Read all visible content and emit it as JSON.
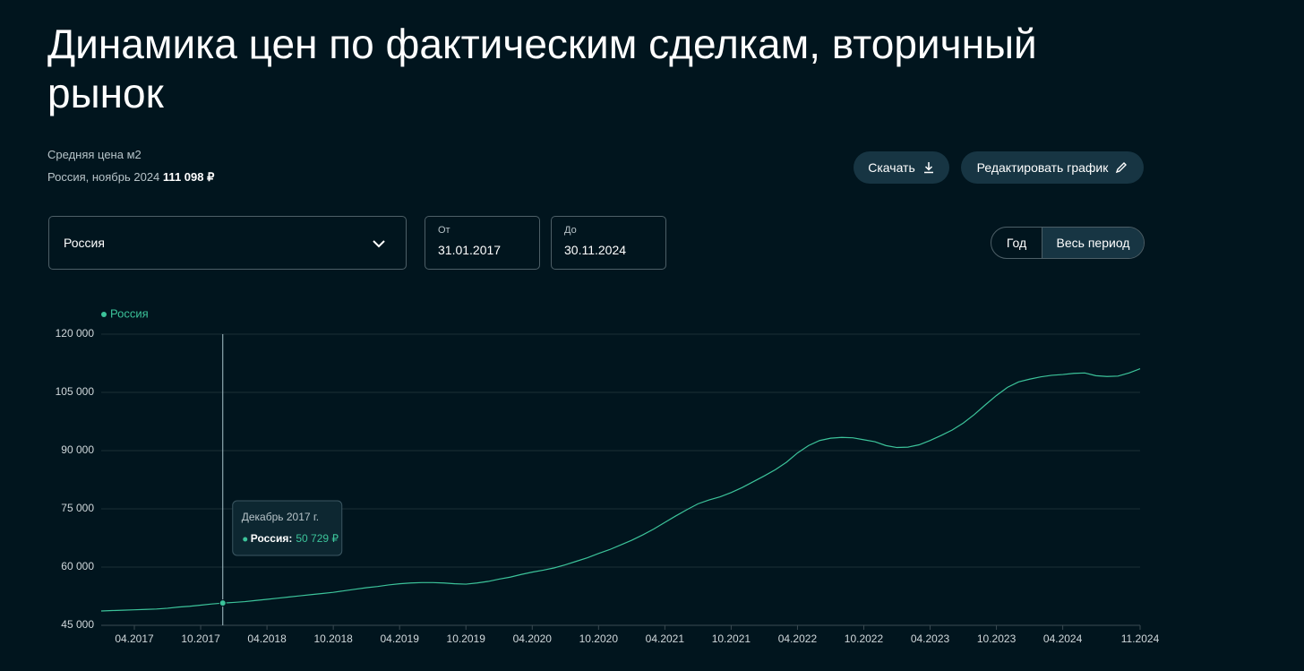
{
  "header": {
    "title": "Динамика цен по фактическим сделкам, вторичный рынок",
    "subtitle": "Средняя цена м2",
    "region_date": "Россия, ноябрь 2024",
    "current_price": "111 098 ₽"
  },
  "buttons": {
    "download": "Скачать",
    "edit": "Редактировать график"
  },
  "filters": {
    "region": "Россия",
    "from_label": "От",
    "from_value": "31.01.2017",
    "to_label": "До",
    "to_value": "30.11.2024",
    "period_year": "Год",
    "period_all": "Весь период"
  },
  "chart_data": {
    "type": "line",
    "categories": [
      null,
      null,
      null,
      "04.2017",
      null,
      null,
      null,
      null,
      null,
      "10.2017",
      null,
      null,
      null,
      null,
      null,
      "04.2018",
      null,
      null,
      null,
      null,
      null,
      "10.2018",
      null,
      null,
      null,
      null,
      null,
      "04.2019",
      null,
      null,
      null,
      null,
      null,
      "10.2019",
      null,
      null,
      null,
      null,
      null,
      "04.2020",
      null,
      null,
      null,
      null,
      null,
      "10.2020",
      null,
      null,
      null,
      null,
      null,
      "04.2021",
      null,
      null,
      null,
      null,
      null,
      "10.2021",
      null,
      null,
      null,
      null,
      null,
      "04.2022",
      null,
      null,
      null,
      null,
      null,
      "10.2022",
      null,
      null,
      null,
      null,
      null,
      "04.2023",
      null,
      null,
      null,
      null,
      null,
      "10.2023",
      null,
      null,
      null,
      null,
      null,
      "04.2024",
      null,
      null,
      null,
      null,
      null,
      null,
      "11.2024"
    ],
    "series": [
      {
        "name": "Россия",
        "color": "#3cc39a",
        "values": [
          48700,
          48800,
          48900,
          49000,
          49100,
          49200,
          49400,
          49700,
          49900,
          50200,
          50500,
          50729,
          50900,
          51100,
          51400,
          51700,
          52000,
          52300,
          52600,
          52900,
          53200,
          53500,
          53900,
          54300,
          54700,
          55000,
          55400,
          55700,
          55900,
          56000,
          56000,
          55900,
          55700,
          55600,
          55900,
          56300,
          56900,
          57400,
          58100,
          58700,
          59200,
          59800,
          60600,
          61500,
          62400,
          63500,
          64500,
          65700,
          66900,
          68300,
          69800,
          71500,
          73200,
          74800,
          76300,
          77300,
          78100,
          79200,
          80500,
          82000,
          83500,
          85100,
          87000,
          89400,
          91300,
          92600,
          93200,
          93400,
          93300,
          92800,
          92300,
          91300,
          90800,
          90900,
          91500,
          92600,
          93900,
          95300,
          97100,
          99300,
          101800,
          104200,
          106300,
          107700,
          108400,
          109000,
          109400,
          109600,
          109900,
          110000,
          109300,
          109100,
          109200,
          110000,
          111098
        ]
      }
    ],
    "ylim": [
      45000,
      120000
    ],
    "yticks": [
      {
        "value": 45000,
        "label": "45 000"
      },
      {
        "value": 60000,
        "label": "60 000"
      },
      {
        "value": 75000,
        "label": "75 000"
      },
      {
        "value": 90000,
        "label": "90 000"
      },
      {
        "value": 105000,
        "label": "105 000"
      },
      {
        "value": 120000,
        "label": "120 000"
      }
    ],
    "grid": true,
    "tooltip": {
      "title": "Декабрь 2017 г.",
      "label": "Россия:",
      "value": 50729,
      "value_label": "50 729 ₽"
    }
  }
}
